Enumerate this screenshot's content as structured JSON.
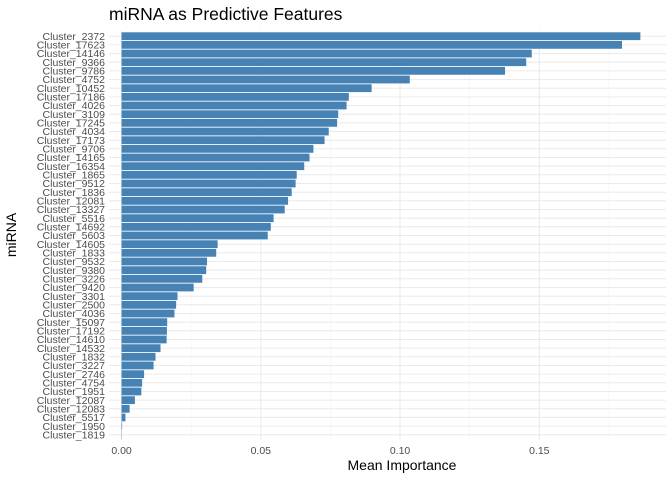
{
  "chart_data": {
    "type": "bar",
    "orientation": "horizontal",
    "title": "miRNA as Predictive Features",
    "xlabel": "Mean Importance",
    "ylabel": "miRNA",
    "xlim": [
      -0.0045,
      0.1955
    ],
    "x_ticks": [
      0.0,
      0.05,
      0.1,
      0.15
    ],
    "x_tick_labels": [
      "0.00",
      "0.05",
      "0.10",
      "0.15"
    ],
    "grid": true,
    "legend": "none",
    "bar_color": "#4682B4",
    "categories": [
      "Cluster_2372",
      "Cluster_17623",
      "Cluster_14146",
      "Cluster_9366",
      "Cluster_9786",
      "Cluster_4752",
      "Cluster_10452",
      "Cluster_17186",
      "Cluster_4026",
      "Cluster_3109",
      "Cluster_17245",
      "Cluster_4034",
      "Cluster_17173",
      "Cluster_9706",
      "Cluster_14165",
      "Cluster_16354",
      "Cluster_1865",
      "Cluster_9512",
      "Cluster_1836",
      "Cluster_12081",
      "Cluster_13327",
      "Cluster_5516",
      "Cluster_14692",
      "Cluster_5603",
      "Cluster_14605",
      "Cluster_1833",
      "Cluster_9532",
      "Cluster_9380",
      "Cluster_3226",
      "Cluster_9420",
      "Cluster_3301",
      "Cluster_2500",
      "Cluster_4036",
      "Cluster_15097",
      "Cluster_17192",
      "Cluster_14610",
      "Cluster_14532",
      "Cluster_1832",
      "Cluster_3227",
      "Cluster_2746",
      "Cluster_4754",
      "Cluster_1951",
      "Cluster_12087",
      "Cluster_12083",
      "Cluster_5517",
      "Cluster_1950",
      "Cluster_1819"
    ],
    "values": [
      0.1863,
      0.1797,
      0.1473,
      0.1453,
      0.1377,
      0.1035,
      0.0898,
      0.0816,
      0.0808,
      0.0778,
      0.0774,
      0.0744,
      0.0729,
      0.0689,
      0.0675,
      0.0656,
      0.0629,
      0.0625,
      0.0611,
      0.0598,
      0.0586,
      0.0546,
      0.0536,
      0.0525,
      0.0345,
      0.034,
      0.0307,
      0.0304,
      0.029,
      0.0259,
      0.0201,
      0.0196,
      0.019,
      0.0164,
      0.0163,
      0.0162,
      0.014,
      0.0122,
      0.0115,
      0.0081,
      0.0074,
      0.0071,
      0.0048,
      0.0029,
      0.0014,
      0.0002,
      0.0001
    ]
  }
}
